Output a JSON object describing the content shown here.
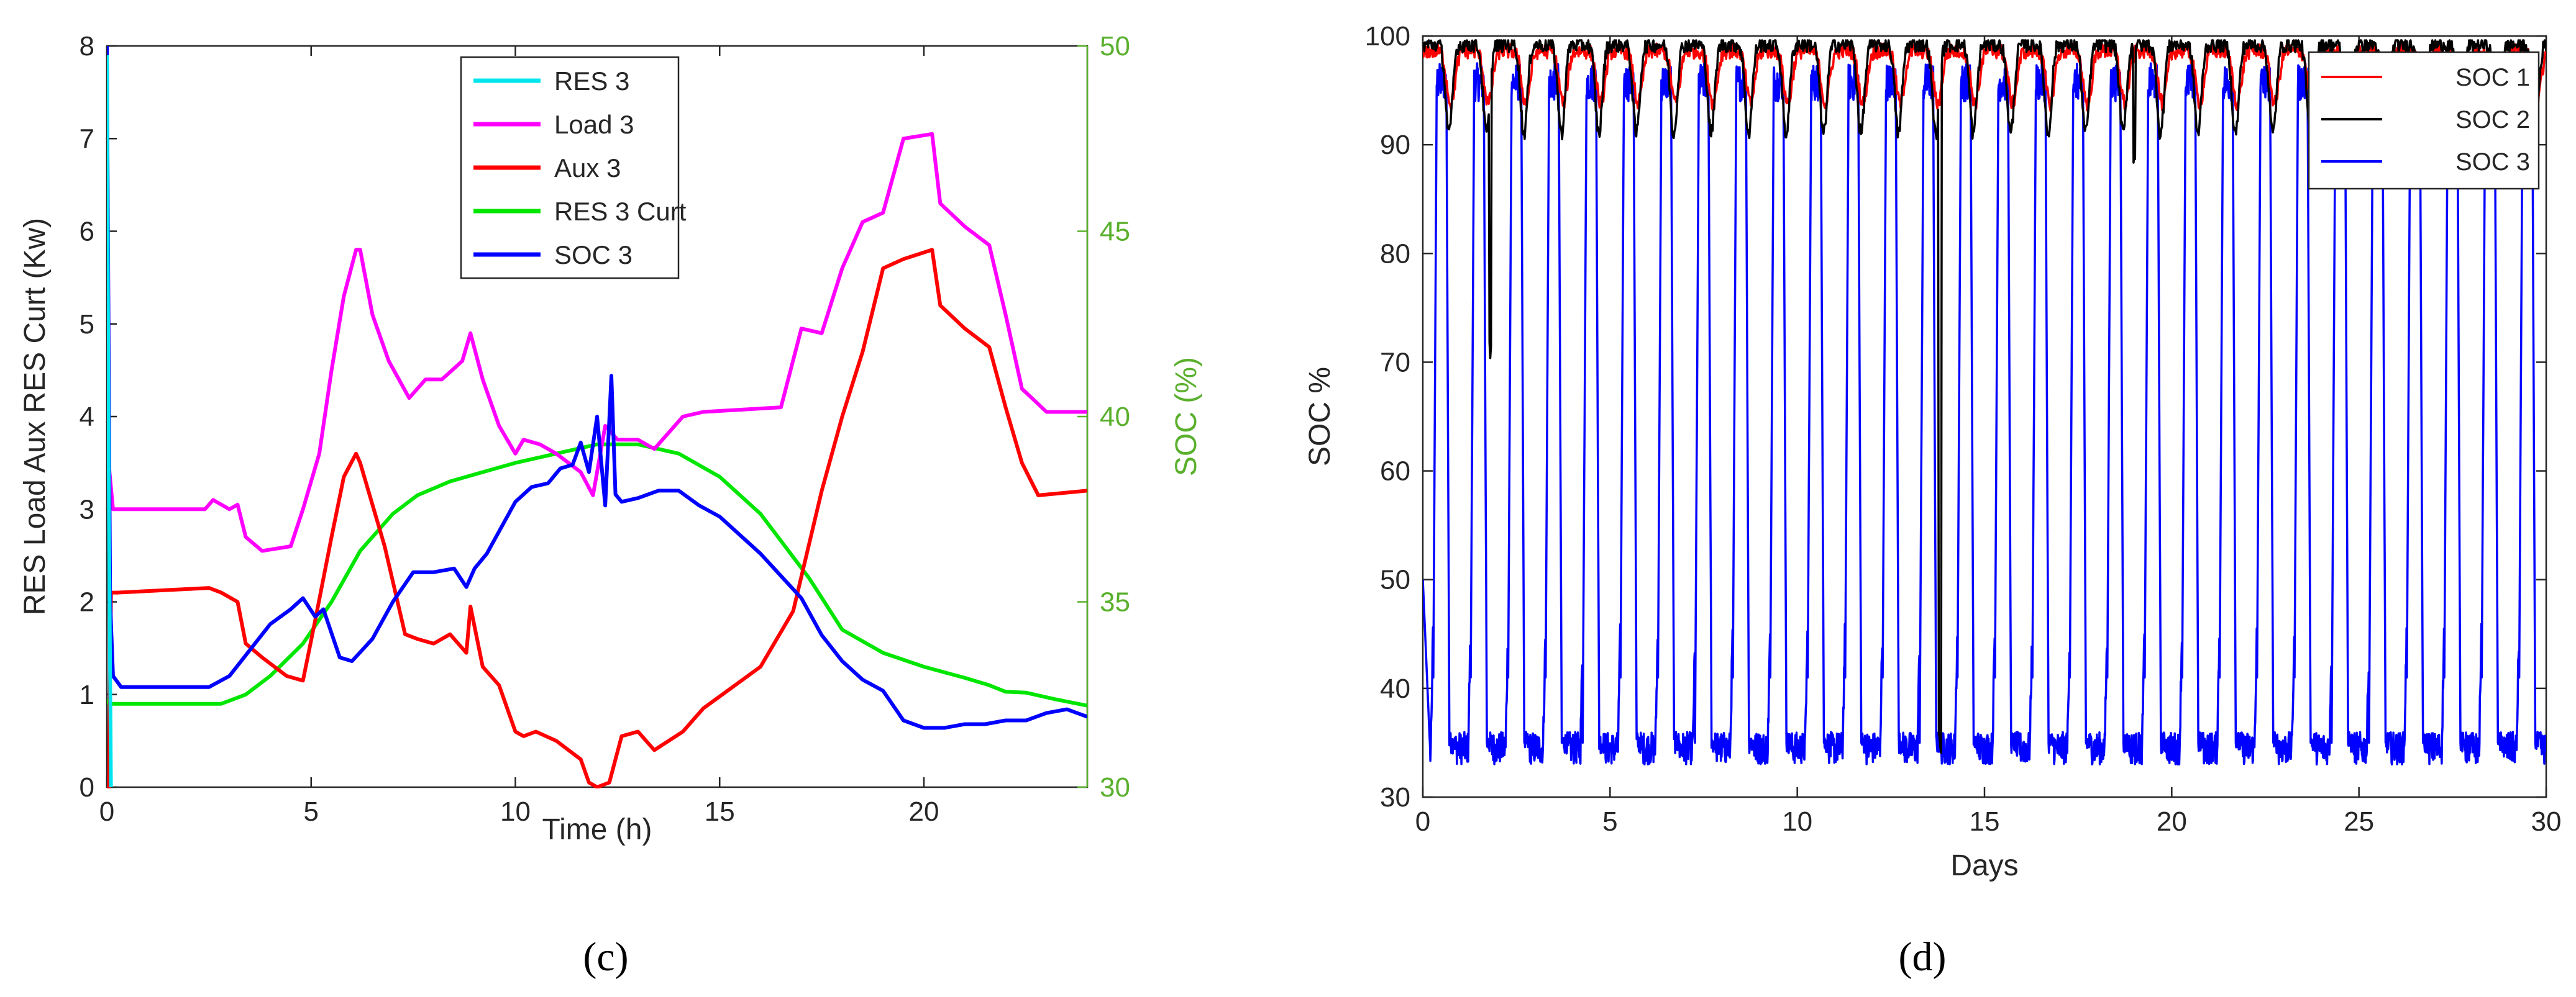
{
  "chart_data": [
    {
      "type": "line",
      "panel_label": "(c)",
      "title": "",
      "xlabel": "Time (h)",
      "ylabel": "RES Load Aux RES Curt (Kw)",
      "ylabel_right": "SOC (%)",
      "xlim": [
        0,
        24
      ],
      "ylim": [
        0,
        8
      ],
      "ylim_right": [
        30,
        50
      ],
      "x_ticks": [
        "0",
        "5",
        "10",
        "15",
        "20"
      ],
      "y_ticks": [
        "0",
        "1",
        "2",
        "3",
        "4",
        "5",
        "6",
        "7",
        "8"
      ],
      "y_ticks_right": [
        "30",
        "35",
        "40",
        "45",
        "50"
      ],
      "grid": false,
      "legend_position": "top-center",
      "right_axis_color": "#5ab02d",
      "series": [
        {
          "name": "RES 3",
          "color": "#00e5ee",
          "axis": "left",
          "x": [
            0,
            0.05,
            0.1
          ],
          "y": [
            7.9,
            3.0,
            0
          ]
        },
        {
          "name": "Load 3",
          "color": "#ff00ff",
          "axis": "left",
          "x": [
            0,
            0.15,
            2.4,
            2.6,
            3.0,
            3.2,
            3.4,
            3.8,
            4.5,
            4.8,
            5.2,
            5.5,
            5.8,
            6.1,
            6.2,
            6.5,
            6.9,
            7.4,
            7.8,
            8.2,
            8.7,
            8.9,
            9.2,
            9.6,
            10.0,
            10.2,
            10.6,
            11.0,
            11.6,
            11.9,
            12.2,
            12.5,
            13.0,
            13.4,
            14.1,
            14.6,
            16.5,
            17.0,
            17.5,
            18.0,
            18.5,
            19.0,
            19.5,
            20.2,
            20.4,
            21.0,
            21.6,
            22.0,
            22.4,
            23.0,
            24.0
          ],
          "y": [
            3.7,
            3.0,
            3.0,
            3.1,
            3.0,
            3.05,
            2.7,
            2.55,
            2.6,
            3.0,
            3.6,
            4.5,
            5.3,
            5.8,
            5.8,
            5.1,
            4.6,
            4.2,
            4.4,
            4.4,
            4.6,
            4.9,
            4.4,
            3.9,
            3.6,
            3.75,
            3.7,
            3.6,
            3.4,
            3.15,
            3.9,
            3.75,
            3.75,
            3.65,
            4.0,
            4.05,
            4.1,
            4.95,
            4.9,
            5.6,
            6.1,
            6.2,
            7.0,
            7.05,
            6.3,
            6.05,
            5.85,
            5.1,
            4.3,
            4.05,
            4.05
          ]
        },
        {
          "name": "Aux 3",
          "color": "#ff0000",
          "axis": "left",
          "x": [
            0,
            0.05,
            0.1,
            0.25,
            2.5,
            2.8,
            3.2,
            3.4,
            3.8,
            4.4,
            4.8,
            5.1,
            5.5,
            5.8,
            6.1,
            6.2,
            6.8,
            7.3,
            7.6,
            8.0,
            8.4,
            8.8,
            8.9,
            9.2,
            9.6,
            10.0,
            10.2,
            10.5,
            11.0,
            11.6,
            11.8,
            12.0,
            12.3,
            12.6,
            13.0,
            13.4,
            14.1,
            14.6,
            16.0,
            16.8,
            17.5,
            18.0,
            18.5,
            19.0,
            19.5,
            20.2,
            20.4,
            21.0,
            21.6,
            22.0,
            22.4,
            22.8,
            24.0
          ],
          "y": [
            0,
            0.0,
            2.1,
            2.1,
            2.15,
            2.1,
            2.0,
            1.55,
            1.4,
            1.2,
            1.15,
            1.8,
            2.7,
            3.35,
            3.6,
            3.5,
            2.6,
            1.65,
            1.6,
            1.55,
            1.65,
            1.45,
            1.95,
            1.3,
            1.1,
            0.6,
            0.55,
            0.6,
            0.5,
            0.3,
            0.05,
            0.0,
            0.05,
            0.55,
            0.6,
            0.4,
            0.6,
            0.85,
            1.3,
            1.9,
            3.2,
            4.0,
            4.7,
            5.6,
            5.7,
            5.8,
            5.2,
            4.95,
            4.75,
            4.1,
            3.5,
            3.15,
            3.2
          ]
        },
        {
          "name": "RES 3 Curt",
          "color": "#00e600",
          "axis": "left",
          "x": [
            0,
            0.05,
            2.8,
            3.4,
            4.0,
            4.8,
            5.5,
            6.2,
            7.0,
            7.6,
            8.4,
            9.2,
            10.0,
            11.0,
            12.0,
            13.0,
            14.0,
            15.0,
            16.0,
            16.6,
            17.2,
            18.0,
            19.0,
            20.0,
            21.0,
            21.6,
            22.0,
            22.5,
            23.2,
            24.0
          ],
          "y": [
            0.95,
            0.9,
            0.9,
            1.0,
            1.2,
            1.55,
            2.0,
            2.55,
            2.95,
            3.15,
            3.3,
            3.4,
            3.5,
            3.6,
            3.7,
            3.7,
            3.6,
            3.35,
            2.95,
            2.6,
            2.25,
            1.7,
            1.45,
            1.3,
            1.18,
            1.1,
            1.03,
            1.02,
            0.95,
            0.88
          ]
        },
        {
          "name": "SOC 3",
          "color": "#0000ff",
          "axis": "right",
          "x": [
            0,
            0.08,
            0.15,
            0.35,
            2.5,
            3.0,
            3.5,
            4.0,
            4.5,
            4.8,
            5.1,
            5.3,
            5.7,
            6.0,
            6.5,
            7.0,
            7.5,
            8.0,
            8.5,
            8.8,
            9.0,
            9.3,
            9.7,
            10.0,
            10.4,
            10.8,
            11.1,
            11.4,
            11.6,
            11.8,
            12.0,
            12.2,
            12.35,
            12.45,
            12.6,
            13.0,
            13.5,
            14.0,
            14.5,
            15.0,
            15.5,
            16.0,
            16.5,
            17.0,
            17.5,
            18.0,
            18.5,
            19.0,
            19.5,
            20.0,
            20.5,
            21.0,
            21.5,
            22.0,
            22.5,
            23.0,
            23.5,
            24.0
          ],
          "y": [
            50,
            35.0,
            33.0,
            32.7,
            32.7,
            33.0,
            33.7,
            34.4,
            34.8,
            35.1,
            34.6,
            34.8,
            33.5,
            33.4,
            34.0,
            35.0,
            35.8,
            35.8,
            35.9,
            35.4,
            35.9,
            36.3,
            37.1,
            37.7,
            38.1,
            38.2,
            38.6,
            38.7,
            39.3,
            38.5,
            40.0,
            37.6,
            41.1,
            37.9,
            37.7,
            37.8,
            38.0,
            38.0,
            37.6,
            37.3,
            36.8,
            36.3,
            35.7,
            35.1,
            34.1,
            33.4,
            32.9,
            32.6,
            31.8,
            31.6,
            31.6,
            31.7,
            31.7,
            31.8,
            31.8,
            32.0,
            32.1,
            31.9
          ]
        }
      ]
    },
    {
      "type": "line",
      "panel_label": "(d)",
      "title": "",
      "xlabel": "Days",
      "ylabel": "SOC %",
      "xlim": [
        0,
        30
      ],
      "ylim": [
        30,
        100
      ],
      "x_ticks": [
        "0",
        "5",
        "10",
        "15",
        "20",
        "25",
        "30"
      ],
      "y_ticks": [
        "30",
        "40",
        "50",
        "60",
        "70",
        "80",
        "90",
        "100"
      ],
      "grid": false,
      "legend_position": "top-right",
      "series": [
        {
          "name": "SOC 1",
          "color": "#ff0000",
          "pattern": "daily cycling, approx. 94 to 98 %",
          "min": 94,
          "max": 98.5
        },
        {
          "name": "SOC 2",
          "color": "#000000",
          "pattern": "daily cycling, approx. 91 to 99 %, occasional deep dips (to approx. 71 % near day 1.8 and 35 % near day 13.8)",
          "min": 35,
          "max": 99.5
        },
        {
          "name": "SOC 3",
          "color": "#0000ff",
          "pattern": "daily cycling between approx. 32 and 97 %",
          "min": 32,
          "max": 98.5
        }
      ]
    }
  ]
}
